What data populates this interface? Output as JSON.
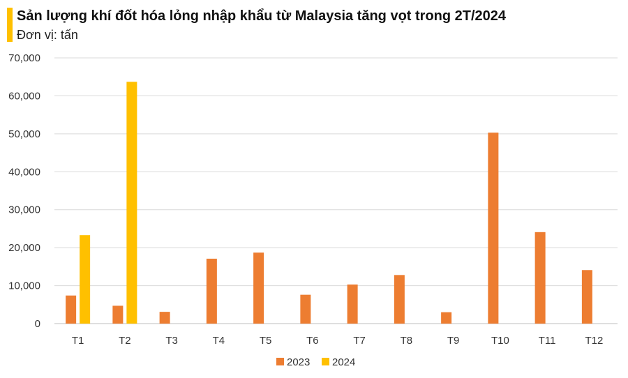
{
  "chart_data": {
    "type": "bar",
    "title": "Sản lượng khí đốt hóa lỏng nhập khẩu từ Malaysia tăng vọt trong 2T/2024",
    "subtitle": "Đơn vị: tấn",
    "xlabel": "",
    "ylabel": "",
    "ylim": [
      0,
      70000
    ],
    "yticks": [
      0,
      10000,
      20000,
      30000,
      40000,
      50000,
      60000,
      70000
    ],
    "ytick_labels": [
      "0",
      "10,000",
      "20,000",
      "30,000",
      "40,000",
      "50,000",
      "60,000",
      "70,000"
    ],
    "categories": [
      "T1",
      "T2",
      "T3",
      "T4",
      "T5",
      "T6",
      "T7",
      "T8",
      "T9",
      "T10",
      "T11",
      "T12"
    ],
    "series": [
      {
        "name": "2023",
        "color": "#ED7D31",
        "values": [
          7400,
          4700,
          3100,
          17100,
          18700,
          7600,
          10300,
          12800,
          3000,
          50300,
          24100,
          14100
        ]
      },
      {
        "name": "2024",
        "color": "#FFC000",
        "values": [
          23300,
          63700,
          null,
          null,
          null,
          null,
          null,
          null,
          null,
          null,
          null,
          null
        ]
      }
    ],
    "grid": true,
    "legend_position": "bottom"
  }
}
